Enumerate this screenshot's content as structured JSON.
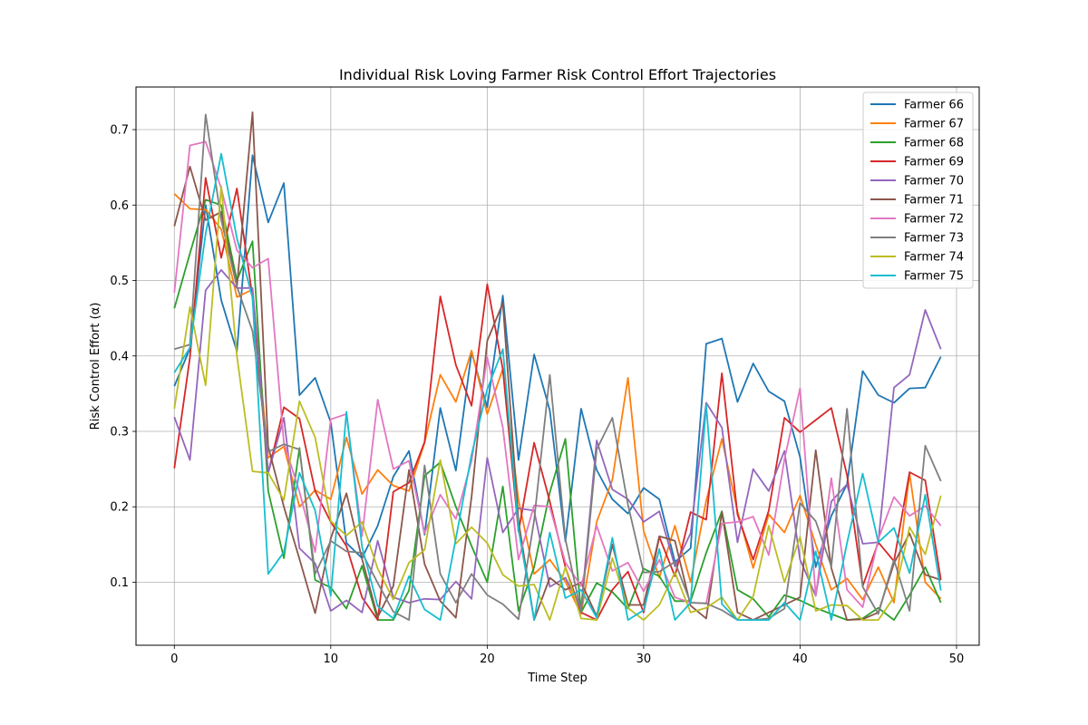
{
  "chart_data": {
    "type": "line",
    "title": "Individual Risk Loving Farmer Risk Control Effort Trajectories",
    "xlabel": "Time Step",
    "ylabel": "Risk Control Effort (α)",
    "xlim": [
      -2.45,
      51.45
    ],
    "ylim": [
      0.0165,
      0.7565
    ],
    "xticks": [
      0,
      10,
      20,
      30,
      40,
      50
    ],
    "yticks": [
      0.1,
      0.2,
      0.3,
      0.4,
      0.5,
      0.6,
      0.7
    ],
    "xtick_labels": [
      "0",
      "10",
      "20",
      "30",
      "40",
      "50"
    ],
    "ytick_labels": [
      "0.1",
      "0.2",
      "0.3",
      "0.4",
      "0.5",
      "0.6",
      "0.7"
    ],
    "grid": true,
    "legend_position": "top-right",
    "x": [
      0,
      1,
      2,
      3,
      4,
      5,
      6,
      7,
      8,
      9,
      10,
      11,
      12,
      13,
      14,
      15,
      16,
      17,
      18,
      19,
      20,
      21,
      22,
      23,
      24,
      25,
      26,
      27,
      28,
      29,
      30,
      31,
      32,
      33,
      34,
      35,
      36,
      37,
      38,
      39,
      40,
      41,
      42,
      43,
      44,
      45,
      46,
      47,
      48,
      49
    ],
    "series": [
      {
        "name": "Farmer 66",
        "color": "#1f77b4",
        "values": [
          0.36,
          0.41,
          0.6,
          0.474,
          0.406,
          0.666,
          0.577,
          0.629,
          0.348,
          0.371,
          0.312,
          0.152,
          0.132,
          0.175,
          0.24,
          0.274,
          0.163,
          0.331,
          0.248,
          0.405,
          0.332,
          0.48,
          0.262,
          0.402,
          0.328,
          0.154,
          0.33,
          0.249,
          0.21,
          0.191,
          0.225,
          0.21,
          0.127,
          0.145,
          0.416,
          0.423,
          0.339,
          0.39,
          0.353,
          0.34,
          0.266,
          0.12,
          0.188,
          0.23,
          0.38,
          0.348,
          0.338,
          0.357,
          0.358,
          0.399
        ]
      },
      {
        "name": "Farmer 67",
        "color": "#ff7f0e",
        "values": [
          0.615,
          0.595,
          0.594,
          0.568,
          0.478,
          0.488,
          0.265,
          0.28,
          0.2,
          0.222,
          0.21,
          0.292,
          0.217,
          0.249,
          0.228,
          0.221,
          0.285,
          0.375,
          0.339,
          0.407,
          0.323,
          0.383,
          0.209,
          0.111,
          0.13,
          0.101,
          0.058,
          0.18,
          0.236,
          0.371,
          0.168,
          0.106,
          0.175,
          0.1,
          0.208,
          0.29,
          0.194,
          0.119,
          0.19,
          0.166,
          0.215,
          0.15,
          0.09,
          0.105,
          0.077,
          0.12,
          0.073,
          0.244,
          0.1,
          0.078
        ]
      },
      {
        "name": "Farmer 68",
        "color": "#2ca02c",
        "values": [
          0.463,
          0.536,
          0.607,
          0.6,
          0.5,
          0.552,
          0.221,
          0.132,
          0.278,
          0.103,
          0.093,
          0.065,
          0.122,
          0.05,
          0.05,
          0.089,
          0.241,
          0.259,
          0.2,
          0.148,
          0.1,
          0.227,
          0.062,
          0.12,
          0.219,
          0.29,
          0.06,
          0.099,
          0.087,
          0.065,
          0.118,
          0.108,
          0.075,
          0.075,
          0.139,
          0.194,
          0.09,
          0.078,
          0.054,
          0.083,
          0.076,
          0.066,
          0.058,
          0.05,
          0.052,
          0.066,
          0.05,
          0.083,
          0.12,
          0.073
        ]
      },
      {
        "name": "Farmer 69",
        "color": "#d62728",
        "values": [
          0.251,
          0.398,
          0.636,
          0.53,
          0.622,
          0.478,
          0.245,
          0.332,
          0.317,
          0.221,
          0.18,
          0.148,
          0.08,
          0.05,
          0.22,
          0.232,
          0.286,
          0.479,
          0.388,
          0.334,
          0.495,
          0.382,
          0.167,
          0.285,
          0.207,
          0.12,
          0.06,
          0.05,
          0.09,
          0.114,
          0.06,
          0.16,
          0.108,
          0.193,
          0.183,
          0.377,
          0.19,
          0.13,
          0.195,
          0.318,
          0.299,
          0.315,
          0.331,
          0.242,
          0.095,
          0.153,
          0.128,
          0.246,
          0.235,
          0.103
        ]
      },
      {
        "name": "Farmer 70",
        "color": "#9467bd",
        "values": [
          0.319,
          0.262,
          0.487,
          0.514,
          0.49,
          0.49,
          0.245,
          0.318,
          0.145,
          0.125,
          0.062,
          0.076,
          0.06,
          0.155,
          0.08,
          0.073,
          0.078,
          0.077,
          0.101,
          0.078,
          0.265,
          0.166,
          0.198,
          0.195,
          0.094,
          0.106,
          0.065,
          0.288,
          0.223,
          0.21,
          0.18,
          0.194,
          0.121,
          0.165,
          0.338,
          0.305,
          0.153,
          0.25,
          0.221,
          0.274,
          0.13,
          0.082,
          0.207,
          0.23,
          0.151,
          0.153,
          0.358,
          0.375,
          0.461,
          0.409
        ]
      },
      {
        "name": "Farmer 71",
        "color": "#8c564b",
        "values": [
          0.572,
          0.651,
          0.58,
          0.591,
          0.492,
          0.723,
          0.28,
          0.2,
          0.131,
          0.059,
          0.158,
          0.218,
          0.131,
          0.054,
          0.095,
          0.249,
          0.124,
          0.075,
          0.053,
          0.213,
          0.42,
          0.47,
          0.181,
          0.05,
          0.106,
          0.09,
          0.1,
          0.055,
          0.15,
          0.07,
          0.07,
          0.161,
          0.155,
          0.069,
          0.052,
          0.193,
          0.06,
          0.05,
          0.06,
          0.07,
          0.08,
          0.275,
          0.119,
          0.05,
          0.051,
          0.06,
          0.125,
          0.165,
          0.11,
          0.103
        ]
      },
      {
        "name": "Farmer 72",
        "color": "#e377c2",
        "values": [
          0.484,
          0.679,
          0.684,
          0.622,
          0.54,
          0.517,
          0.529,
          0.285,
          0.22,
          0.14,
          0.316,
          0.323,
          0.161,
          0.342,
          0.25,
          0.261,
          0.165,
          0.216,
          0.184,
          0.261,
          0.398,
          0.305,
          0.13,
          0.202,
          0.2,
          0.126,
          0.095,
          0.175,
          0.115,
          0.126,
          0.088,
          0.13,
          0.08,
          0.073,
          0.072,
          0.178,
          0.18,
          0.187,
          0.136,
          0.263,
          0.357,
          0.082,
          0.238,
          0.09,
          0.067,
          0.157,
          0.213,
          0.188,
          0.201,
          0.175
        ]
      },
      {
        "name": "Farmer 73",
        "color": "#7f7f7f",
        "values": [
          0.409,
          0.415,
          0.72,
          0.58,
          0.492,
          0.433,
          0.273,
          0.283,
          0.276,
          0.111,
          0.155,
          0.141,
          0.139,
          0.099,
          0.061,
          0.05,
          0.255,
          0.111,
          0.073,
          0.111,
          0.083,
          0.071,
          0.051,
          0.182,
          0.375,
          0.157,
          0.06,
          0.276,
          0.318,
          0.203,
          0.113,
          0.114,
          0.127,
          0.073,
          0.072,
          0.063,
          0.05,
          0.05,
          0.052,
          0.065,
          0.205,
          0.181,
          0.121,
          0.33,
          0.094,
          0.058,
          0.13,
          0.062,
          0.281,
          0.234
        ]
      },
      {
        "name": "Farmer 74",
        "color": "#bcbd22",
        "values": [
          0.33,
          0.465,
          0.361,
          0.625,
          0.4,
          0.247,
          0.245,
          0.209,
          0.34,
          0.292,
          0.181,
          0.162,
          0.18,
          0.118,
          0.077,
          0.126,
          0.143,
          0.262,
          0.151,
          0.173,
          0.152,
          0.11,
          0.095,
          0.097,
          0.05,
          0.12,
          0.052,
          0.05,
          0.132,
          0.066,
          0.05,
          0.07,
          0.113,
          0.06,
          0.066,
          0.08,
          0.05,
          0.081,
          0.175,
          0.1,
          0.16,
          0.062,
          0.07,
          0.069,
          0.05,
          0.05,
          0.08,
          0.173,
          0.137,
          0.215
        ]
      },
      {
        "name": "Farmer 75",
        "color": "#17becf",
        "values": [
          0.378,
          0.411,
          0.562,
          0.668,
          0.556,
          0.477,
          0.111,
          0.14,
          0.245,
          0.195,
          0.082,
          0.326,
          0.147,
          0.068,
          0.052,
          0.108,
          0.064,
          0.05,
          0.158,
          0.269,
          0.356,
          0.409,
          0.17,
          0.05,
          0.166,
          0.079,
          0.09,
          0.053,
          0.159,
          0.05,
          0.063,
          0.144,
          0.05,
          0.073,
          0.335,
          0.071,
          0.05,
          0.05,
          0.05,
          0.073,
          0.05,
          0.141,
          0.05,
          0.152,
          0.244,
          0.153,
          0.172,
          0.112,
          0.216,
          0.089
        ]
      }
    ]
  }
}
